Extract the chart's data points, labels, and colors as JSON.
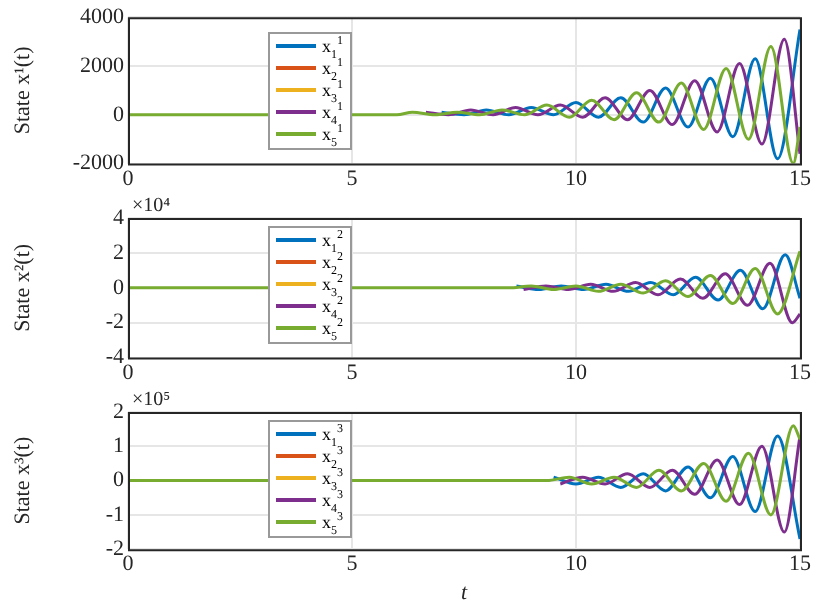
{
  "chart_data": [
    {
      "type": "line",
      "ylabel": "State x¹(t)",
      "xlim": [
        0,
        15
      ],
      "xticks": [
        0,
        5,
        10,
        15
      ],
      "ylim": [
        -2000,
        4000
      ],
      "yticks": [
        -2000,
        0,
        2000,
        4000
      ],
      "grid": true,
      "legend": "left",
      "line_style": "solid",
      "series": [
        {
          "name": "x$_{1}$$^{1}$",
          "color": "#0072bd",
          "x": [
            7,
            7.5,
            8,
            8.5,
            9,
            9.5,
            10,
            10.5,
            11,
            11.5,
            12,
            12.5,
            13,
            13.5,
            14,
            14.5,
            15
          ],
          "values": [
            100,
            0,
            200,
            0,
            300,
            0,
            500,
            -100,
            700,
            -300,
            1100,
            -500,
            1500,
            -900,
            2300,
            -1800,
            3500
          ]
        },
        {
          "name": "x$_{2}$$^{1}$",
          "color": "#d95319"
        },
        {
          "name": "x$_{3}$$^{1}$",
          "color": "#edb120"
        },
        {
          "name": "x$_{4}$$^{1}$",
          "color": "#7e2f8e",
          "x": [
            6.65,
            7.15,
            7.65,
            8.15,
            8.65,
            9.15,
            9.65,
            10.15,
            10.65,
            11.15,
            11.65,
            12.15,
            12.65,
            13.15,
            13.65,
            14.15,
            14.65,
            15
          ],
          "values": [
            100,
            0,
            200,
            0,
            300,
            0,
            400,
            -100,
            700,
            -200,
            1000,
            -400,
            1400,
            -700,
            2100,
            -1200,
            3100,
            -1600
          ]
        },
        {
          "name": "x$_{5}$$^{1}$",
          "color": "#77ac30",
          "x": [
            0,
            5,
            6,
            6.35,
            6.85,
            7.35,
            7.85,
            8.35,
            8.85,
            9.35,
            9.85,
            10.35,
            10.85,
            11.35,
            11.85,
            12.35,
            12.85,
            13.35,
            13.85,
            14.35,
            14.85,
            15
          ],
          "values": [
            0,
            0,
            0,
            100,
            0,
            100,
            0,
            200,
            0,
            400,
            -100,
            600,
            -200,
            900,
            -300,
            1300,
            -600,
            1900,
            -1000,
            2800,
            -2000,
            -500
          ]
        }
      ]
    },
    {
      "type": "line",
      "ylabel": "State x²(t)",
      "annotations": [
        "×10⁴"
      ],
      "xlim": [
        0,
        15
      ],
      "xticks": [
        0,
        5,
        10,
        15
      ],
      "ylim": [
        -4,
        4
      ],
      "yticks": [
        -4,
        -2,
        0,
        2,
        4
      ],
      "grid": true,
      "legend": "left",
      "line_style": "solid",
      "series": [
        {
          "name": "x$_{1}$$^{2}$",
          "color": "#0072bd",
          "x": [
            8.67,
            9.17,
            9.67,
            10.17,
            10.67,
            11.17,
            11.67,
            12.17,
            12.67,
            13.17,
            13.67,
            14.17,
            14.67,
            15
          ],
          "values": [
            0.1,
            -0.1,
            0.1,
            -0.1,
            0.2,
            -0.2,
            0.3,
            -0.4,
            0.6,
            -0.7,
            1,
            -1.2,
            1.9,
            -0.6
          ]
        },
        {
          "name": "x$_{2}$$^{2}$",
          "color": "#d95319"
        },
        {
          "name": "x$_{3}$$^{2}$",
          "color": "#edb120"
        },
        {
          "name": "x$_{4}$$^{2}$",
          "color": "#7e2f8e",
          "x": [
            8.83,
            9.33,
            9.83,
            10.33,
            10.83,
            11.33,
            11.83,
            12.33,
            12.83,
            13.33,
            13.83,
            14.33,
            14.83,
            15
          ],
          "values": [
            -0.1,
            0.1,
            -0.1,
            0.2,
            -0.2,
            0.3,
            -0.4,
            0.5,
            -0.6,
            0.8,
            -1,
            1.4,
            -2,
            -1.5
          ]
        },
        {
          "name": "x$_{5}$$^{2}$",
          "color": "#77ac30",
          "x": [
            0,
            5,
            6.5,
            7,
            7.5,
            8,
            8.5,
            9,
            9.5,
            10,
            10.5,
            11,
            11.5,
            12,
            12.5,
            13,
            13.5,
            14,
            14.5,
            15
          ],
          "values": [
            0,
            0,
            0,
            0,
            0,
            0,
            0,
            0.1,
            -0.1,
            0.1,
            -0.2,
            0.2,
            -0.3,
            0.4,
            -0.5,
            0.7,
            -0.9,
            1.1,
            -1.5,
            2.1
          ]
        }
      ]
    },
    {
      "type": "line",
      "ylabel": "State x³(t)",
      "xlabel": "t",
      "annotations": [
        "×10⁵"
      ],
      "xlim": [
        0,
        15
      ],
      "xticks": [
        0,
        5,
        10,
        15
      ],
      "ylim": [
        -2,
        2
      ],
      "yticks": [
        -2,
        -1,
        0,
        1,
        2
      ],
      "grid": true,
      "legend": "left",
      "line_style": "solid",
      "series": [
        {
          "name": "x$_{1}$$^{3}$",
          "color": "#0072bd",
          "x": [
            9.5,
            10,
            10.5,
            11,
            11.5,
            12,
            12.5,
            13,
            13.5,
            14,
            14.5,
            15
          ],
          "values": [
            0.1,
            -0.1,
            0.1,
            -0.2,
            0.2,
            -0.3,
            0.4,
            -0.5,
            0.7,
            -0.9,
            1.3,
            -1.7
          ]
        },
        {
          "name": "x$_{2}$$^{3}$",
          "color": "#d95319"
        },
        {
          "name": "x$_{3}$$^{3}$",
          "color": "#edb120"
        },
        {
          "name": "x$_{4}$$^{3}$",
          "color": "#7e2f8e",
          "x": [
            9.65,
            10.15,
            10.65,
            11.15,
            11.65,
            12.15,
            12.65,
            13.15,
            13.65,
            14.15,
            14.65,
            15
          ],
          "values": [
            -0.1,
            0.1,
            -0.1,
            0.2,
            -0.2,
            0.3,
            -0.4,
            0.6,
            -0.7,
            1,
            -1.5,
            1.3
          ]
        },
        {
          "name": "x$_{5}$$^{3}$",
          "color": "#77ac30",
          "x": [
            0,
            5,
            6,
            6.35,
            6.85,
            7.35,
            7.85,
            8.35,
            8.85,
            9.35,
            9.85,
            10.35,
            10.85,
            11.35,
            11.85,
            12.35,
            12.85,
            13.35,
            13.85,
            14.35,
            14.85,
            15
          ],
          "values": [
            0,
            0,
            0,
            0,
            0,
            0,
            0,
            0,
            0,
            0,
            0.1,
            -0.1,
            0.1,
            -0.2,
            0.3,
            -0.3,
            0.5,
            -0.6,
            0.8,
            -1,
            1.6,
            1.2
          ]
        }
      ]
    }
  ]
}
